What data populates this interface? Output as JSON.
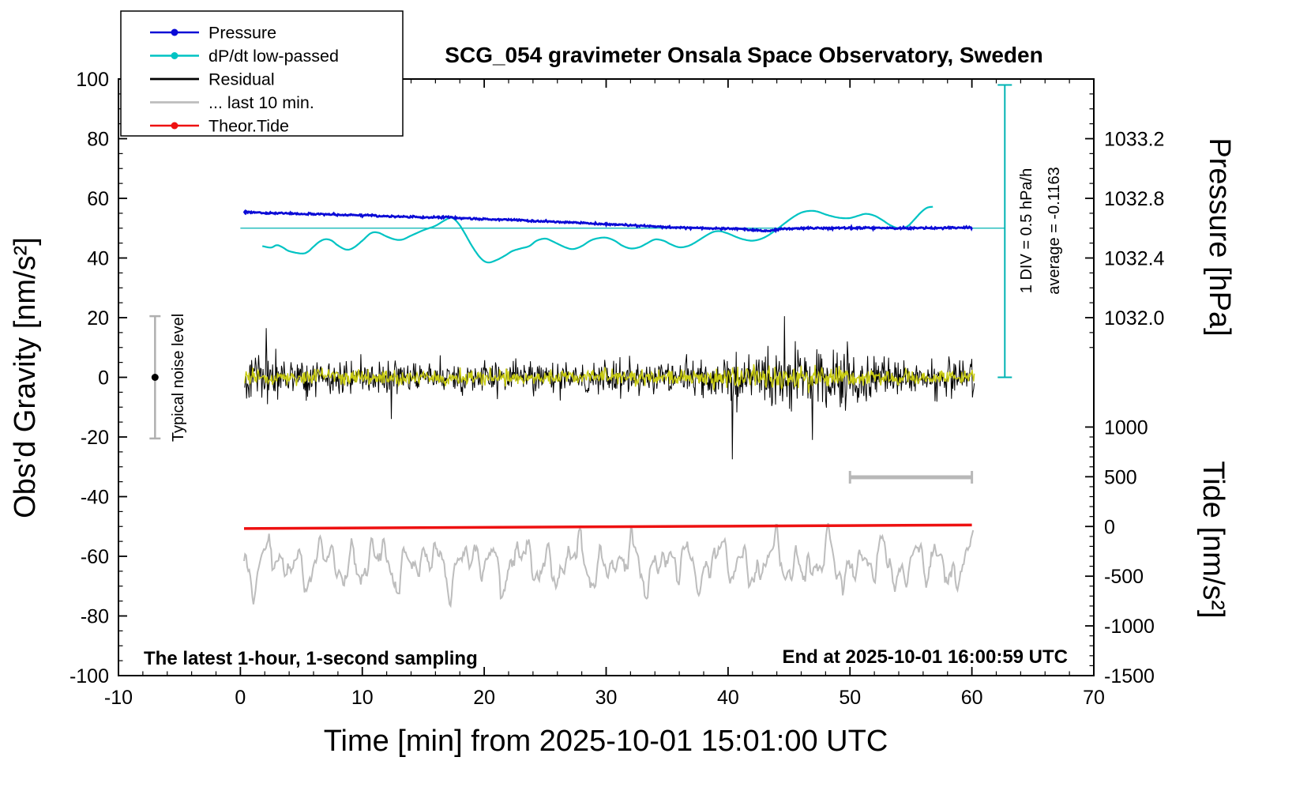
{
  "title": "SCG_054 gravimeter Onsala Space Observatory, Sweden",
  "annotations": {
    "sampling": "The latest 1-hour, 1-second sampling",
    "end_time": "End at 2025-10-01 16:00:59 UTC",
    "noise_label": "Typical noise level",
    "div_label": "1 DIV = 0.5 hPa/h",
    "average_label": "average = -0.1163"
  },
  "legend": [
    {
      "label": "Pressure",
      "color": "#0b0bd6",
      "marker": true
    },
    {
      "label": "dP/dt low-passed",
      "color": "#00c3c3",
      "marker": true
    },
    {
      "label": "Residual",
      "color": "#000000",
      "marker": false
    },
    {
      "label": "... last 10 min.",
      "color": "#bdbdbd",
      "marker": false
    },
    {
      "label": "Theor.Tide",
      "color": "#ee1111",
      "marker": true
    }
  ],
  "axes": {
    "x": {
      "label": "Time [min] from 2025-10-01 15:01:00 UTC",
      "min": -10,
      "max": 70,
      "tick_step": 10,
      "minor_step": 2
    },
    "y_left": {
      "label": "Obs'd Gravity [nm/s²]",
      "min": -100,
      "max": 100,
      "tick_step": 20,
      "minor_step": 5
    },
    "pressure": {
      "label": "Pressure [hPa]",
      "ticks": [
        {
          "label": "1033.2",
          "hpa": 1033.2,
          "g": 80
        },
        {
          "label": "1032.8",
          "hpa": 1032.8,
          "g": 60
        },
        {
          "label": "1032.4",
          "hpa": 1032.4,
          "g": 40
        },
        {
          "label": "1032.0",
          "hpa": 1032.0,
          "g": 20
        }
      ]
    },
    "tide": {
      "label": "Tide [nm/s²]",
      "ticks": [
        {
          "label": "1000",
          "tide": 1000,
          "g": -16.67
        },
        {
          "label": "500",
          "tide": 500,
          "g": -33.33
        },
        {
          "label": "0",
          "tide": 0,
          "g": -50
        },
        {
          "label": "-500",
          "tide": -500,
          "g": -66.67
        },
        {
          "label": "-1000",
          "tide": -1000,
          "g": -83.33
        },
        {
          "label": "-1500",
          "tide": -1500,
          "g": -100
        }
      ]
    }
  },
  "chart_data": {
    "type": "line",
    "x_unit": "minutes",
    "x_range": [
      0,
      60
    ],
    "y_left_range": [
      -100,
      100
    ],
    "reference_line": {
      "y": 50,
      "x_from": 0,
      "x_to": 62.7,
      "color": "#00b3b3"
    },
    "div_bar": {
      "x": 62.7,
      "g_from": 0,
      "g_to": 98,
      "color": "#00b3b3"
    },
    "ten_min_bar": {
      "x_from": 50,
      "x_to": 60,
      "g": -33.5,
      "color": "#b8b8b8"
    },
    "noise_bar": {
      "x": -7,
      "g_from": -20.5,
      "g_to": 20.5,
      "dot_g": 0,
      "color": "#b0b0b0"
    },
    "series": [
      {
        "name": "Pressure",
        "color": "#0b0bd6",
        "width": 2.8,
        "jitter": 0.16,
        "seed": 555,
        "keypoints": [
          [
            0.3,
            55.4
          ],
          [
            2,
            55.1
          ],
          [
            5,
            54.8
          ],
          [
            8,
            54.5
          ],
          [
            10,
            54.3
          ],
          [
            12,
            54.0
          ],
          [
            15,
            53.6
          ],
          [
            17,
            53.6
          ],
          [
            19,
            53.2
          ],
          [
            22,
            52.8
          ],
          [
            25,
            52.3
          ],
          [
            28,
            51.8
          ],
          [
            30,
            51.4
          ],
          [
            32,
            51.0
          ],
          [
            34,
            50.6
          ],
          [
            36,
            50.2
          ],
          [
            38,
            50.0
          ],
          [
            40,
            49.9
          ],
          [
            41.5,
            49.6
          ],
          [
            43,
            49.1
          ],
          [
            44.5,
            49.7
          ],
          [
            46,
            49.9
          ],
          [
            48,
            50.0
          ],
          [
            50,
            50.1
          ],
          [
            53,
            50.0
          ],
          [
            56,
            50.0
          ],
          [
            58,
            50.1
          ],
          [
            60,
            50.3
          ]
        ]
      },
      {
        "name": "dP/dt low-passed",
        "color": "#00c3c3",
        "width": 2.2,
        "keypoints": [
          [
            1.8,
            44
          ],
          [
            2.5,
            43.5
          ],
          [
            3,
            44.3
          ],
          [
            3.5,
            43.5
          ],
          [
            4,
            42.3
          ],
          [
            5,
            41.5
          ],
          [
            5.5,
            42
          ],
          [
            6,
            43.8
          ],
          [
            6.5,
            45.5
          ],
          [
            7,
            46.3
          ],
          [
            7.5,
            45.8
          ],
          [
            8,
            44.2
          ],
          [
            8.7,
            42.8
          ],
          [
            9.3,
            43.5
          ],
          [
            10,
            45.8
          ],
          [
            10.7,
            48.3
          ],
          [
            11.3,
            48.5
          ],
          [
            12,
            47.2
          ],
          [
            12.7,
            46.2
          ],
          [
            13.3,
            46.2
          ],
          [
            14,
            47.5
          ],
          [
            15,
            49.3
          ],
          [
            16,
            50.8
          ],
          [
            16.7,
            52.5
          ],
          [
            17.3,
            53.5
          ],
          [
            17.8,
            52
          ],
          [
            18.3,
            49
          ],
          [
            19,
            44
          ],
          [
            19.7,
            40
          ],
          [
            20.3,
            38.5
          ],
          [
            21,
            39.3
          ],
          [
            21.7,
            40.8
          ],
          [
            22.3,
            42.3
          ],
          [
            23,
            43.2
          ],
          [
            23.7,
            44
          ],
          [
            24.3,
            45.8
          ],
          [
            25,
            46.5
          ],
          [
            25.5,
            45.8
          ],
          [
            26,
            44.8
          ],
          [
            26.7,
            43.5
          ],
          [
            27.3,
            43
          ],
          [
            28,
            44
          ],
          [
            28.7,
            45.8
          ],
          [
            29.3,
            46.6
          ],
          [
            30,
            46.8
          ],
          [
            30.7,
            45.8
          ],
          [
            31.3,
            44.2
          ],
          [
            32,
            43.2
          ],
          [
            32.7,
            43.6
          ],
          [
            33.3,
            44.8
          ],
          [
            34,
            46.2
          ],
          [
            34.7,
            45.8
          ],
          [
            35.3,
            44.6
          ],
          [
            36,
            43.6
          ],
          [
            36.7,
            44
          ],
          [
            37.3,
            45.2
          ],
          [
            38,
            47
          ],
          [
            38.7,
            48.6
          ],
          [
            39.3,
            49
          ],
          [
            40,
            48.2
          ],
          [
            40.7,
            47
          ],
          [
            41.3,
            46.2
          ],
          [
            42,
            45.8
          ],
          [
            42.7,
            46.4
          ],
          [
            43.3,
            47.6
          ],
          [
            44,
            49.6
          ],
          [
            44.7,
            51.8
          ],
          [
            45.3,
            53.6
          ],
          [
            46,
            55.2
          ],
          [
            46.7,
            55.8
          ],
          [
            47.3,
            55.6
          ],
          [
            48,
            54.6
          ],
          [
            48.7,
            53.8
          ],
          [
            49.3,
            53.4
          ],
          [
            50,
            53.4
          ],
          [
            50.7,
            54.2
          ],
          [
            51.3,
            54.8
          ],
          [
            52,
            54.2
          ],
          [
            52.7,
            52.6
          ],
          [
            53.3,
            51
          ],
          [
            54,
            50
          ],
          [
            54.7,
            50.6
          ],
          [
            55.3,
            53
          ],
          [
            55.8,
            55.2
          ],
          [
            56.3,
            56.8
          ],
          [
            56.8,
            57.2
          ]
        ]
      },
      {
        "name": "Residual",
        "color": "#000000",
        "width": 1,
        "type": "noise",
        "n": 1150,
        "seed": 20251001,
        "envelope": [
          [
            0.3,
            6.5
          ],
          [
            1.5,
            7.5
          ],
          [
            2.5,
            7
          ],
          [
            4,
            5.5
          ],
          [
            6,
            5.5
          ],
          [
            8,
            5
          ],
          [
            10,
            5.5
          ],
          [
            12,
            6.5
          ],
          [
            14,
            5
          ],
          [
            16,
            4.8
          ],
          [
            18,
            4.8
          ],
          [
            20,
            5
          ],
          [
            22,
            4.8
          ],
          [
            24,
            5
          ],
          [
            26,
            4.8
          ],
          [
            28,
            5
          ],
          [
            30,
            5.2
          ],
          [
            32,
            5
          ],
          [
            34,
            5.2
          ],
          [
            36,
            5
          ],
          [
            38,
            6
          ],
          [
            39.5,
            7.5
          ],
          [
            40.5,
            9
          ],
          [
            41.5,
            7.5
          ],
          [
            43,
            8
          ],
          [
            44,
            9.5
          ],
          [
            45,
            9
          ],
          [
            46,
            9.5
          ],
          [
            47,
            9
          ],
          [
            48,
            8.5
          ],
          [
            49,
            8
          ],
          [
            50,
            8.5
          ],
          [
            51,
            8
          ],
          [
            52,
            7
          ],
          [
            53,
            6.5
          ],
          [
            54,
            6
          ],
          [
            55,
            6.5
          ],
          [
            56,
            6
          ],
          [
            57,
            6
          ],
          [
            58,
            6
          ],
          [
            59,
            6
          ],
          [
            60,
            6
          ]
        ],
        "spikes": [
          [
            40.35,
            -27.5
          ],
          [
            44.6,
            20.5
          ],
          [
            46.9,
            -21
          ],
          [
            2.1,
            16.5
          ],
          [
            12.4,
            -14
          ]
        ]
      },
      {
        "name": "Residual low-passed",
        "color": "#c9cc12",
        "width": 1.4,
        "type": "noise",
        "n": 1000,
        "seed": 777,
        "envelope": [
          [
            0.3,
            2.2
          ],
          [
            10,
            2.2
          ],
          [
            20,
            2.1
          ],
          [
            30,
            2.3
          ],
          [
            35,
            2.5
          ],
          [
            37,
            3.2
          ],
          [
            39,
            3.5
          ],
          [
            41,
            3.5
          ],
          [
            43,
            3.8
          ],
          [
            45,
            3.6
          ],
          [
            47,
            3.2
          ],
          [
            49,
            2.8
          ],
          [
            52,
            2.4
          ],
          [
            60,
            2.2
          ]
        ],
        "spikes": []
      },
      {
        "name": "... last 10 min.",
        "color": "#bdbdbd",
        "width": 2,
        "type": "smooth-noise",
        "n": 700,
        "seed": 4242,
        "baseline": -62.5,
        "periods": [
          4.1,
          2.3,
          1.45,
          0.85,
          0.52
        ],
        "amps": [
          3.2,
          3.8,
          3.4,
          2.4,
          1.4
        ],
        "noise": 0.9,
        "clamp": [
          -77,
          -44
        ]
      },
      {
        "name": "Theor.Tide",
        "color": "#ee1111",
        "width": 3.5,
        "keypoints": [
          [
            0.3,
            -50.7
          ],
          [
            10,
            -50.5
          ],
          [
            20,
            -50.3
          ],
          [
            30,
            -50.1
          ],
          [
            40,
            -49.9
          ],
          [
            50,
            -49.7
          ],
          [
            60,
            -49.5
          ]
        ]
      }
    ]
  }
}
